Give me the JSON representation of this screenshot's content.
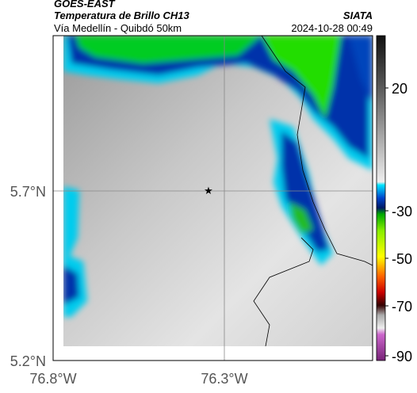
{
  "header": {
    "source": "GOES-EAST",
    "title": "Temperatura de Brillo CH13",
    "subtitle": "Vía Medellín - Quibdó 50km",
    "org": "SIATA",
    "timestamp": "2024-10-28 00:49"
  },
  "axes": {
    "lat_labels": [
      "5.7°N",
      "5.2°N"
    ],
    "lon_labels": [
      "76.8°W",
      "76.3°W"
    ]
  },
  "colorbar": {
    "labels": [
      "20",
      "-30",
      "-50",
      "-70",
      "-90"
    ]
  }
}
